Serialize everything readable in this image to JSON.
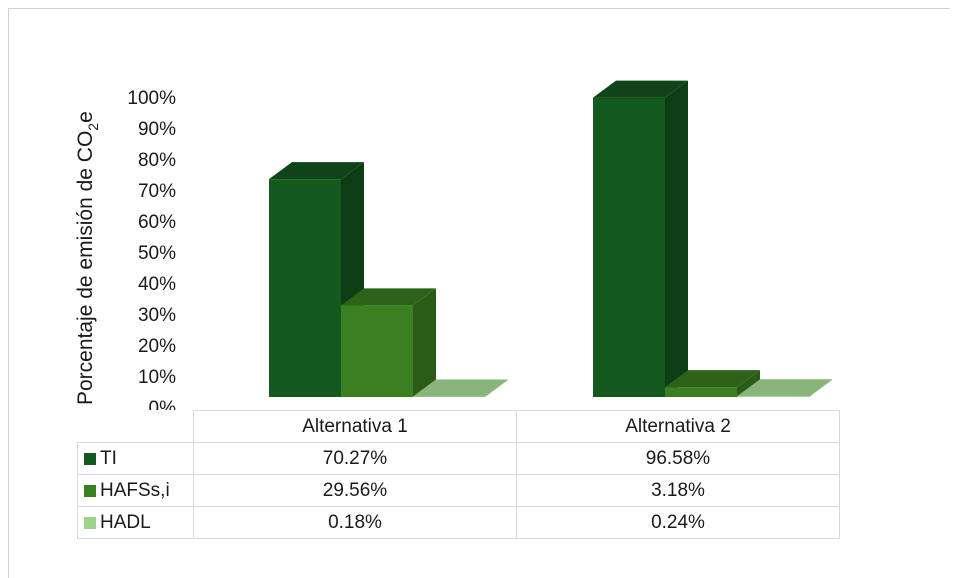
{
  "chart_data": {
    "type": "bar",
    "ylabel_main": "Porcentaje de emisión de CO",
    "ylabel_sub": "2",
    "ylabel_suffix": "e",
    "yticks": [
      "0%",
      "10%",
      "20%",
      "30%",
      "40%",
      "50%",
      "60%",
      "70%",
      "80%",
      "90%",
      "100%"
    ],
    "ylim": [
      0,
      100
    ],
    "categories": [
      "Alternativa 1",
      "Alternativa 2"
    ],
    "series": [
      {
        "name": "TI",
        "values": [
          70.27,
          96.58
        ],
        "labels": [
          "70.27%",
          "96.58%"
        ],
        "color": "#145a1f",
        "side": "#0d3d15",
        "top": "#0e4417"
      },
      {
        "name": "HAFSs,i",
        "values": [
          29.56,
          3.18
        ],
        "labels": [
          "29.56%",
          "3.18%"
        ],
        "color": "#3b7f22",
        "side": "#2a5c18",
        "top": "#2c6319"
      },
      {
        "name": "HADL",
        "values": [
          0.18,
          0.24
        ],
        "labels": [
          "0.18%",
          "0.24%"
        ],
        "color": "#9fd28a",
        "side": "#7aab68",
        "top": "#8ab57a"
      }
    ],
    "data_table": true,
    "legend": "in-table"
  }
}
